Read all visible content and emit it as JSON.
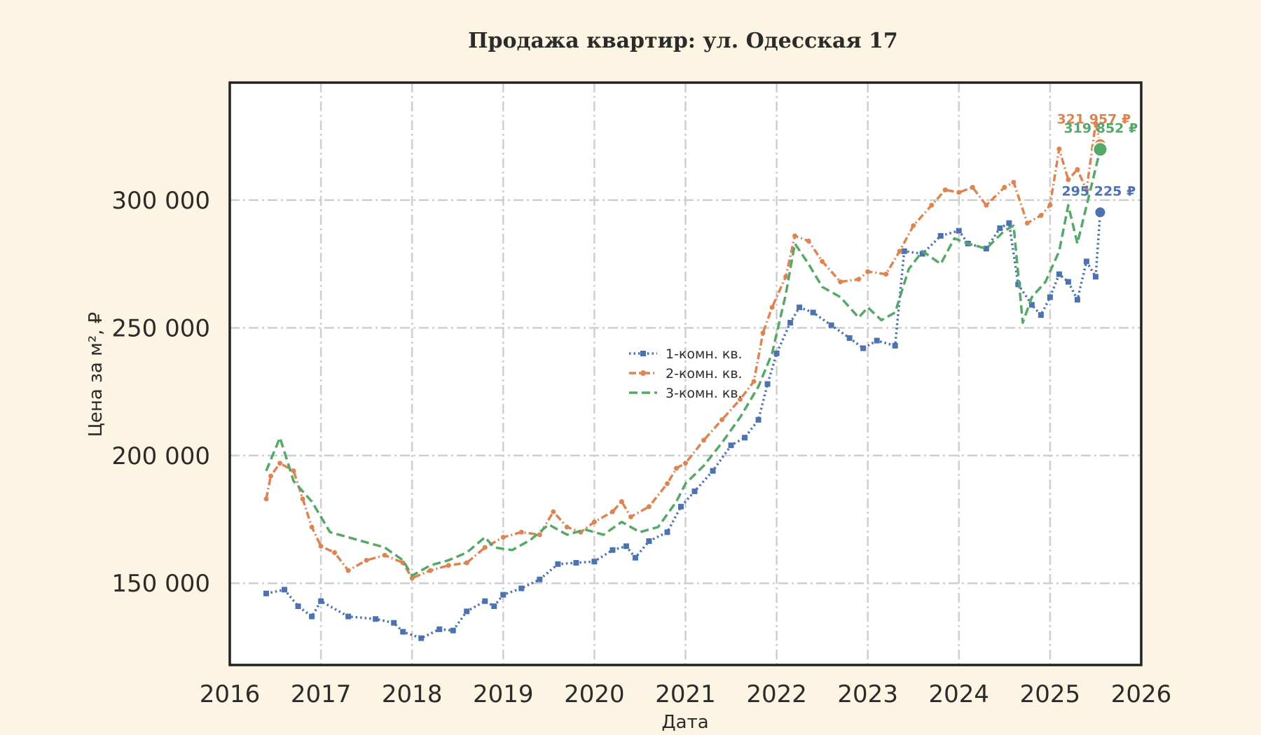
{
  "chart_data": {
    "type": "line",
    "title": "Продажа квартир: ул. Одесская 17",
    "xlabel": "Дата",
    "ylabel": "Цена за м², ₽",
    "xlim": [
      2016,
      2026
    ],
    "ylim": [
      118000,
      346000
    ],
    "x_ticks": [
      "2016",
      "2017",
      "2018",
      "2019",
      "2020",
      "2021",
      "2022",
      "2023",
      "2024",
      "2025",
      "2026"
    ],
    "y_ticks": [
      {
        "value": 150000,
        "label": "150 000"
      },
      {
        "value": 200000,
        "label": "200 000"
      },
      {
        "value": 250000,
        "label": "250 000"
      },
      {
        "value": 300000,
        "label": "300 000"
      }
    ],
    "grid": true,
    "legend_position": "center",
    "series": [
      {
        "name": "1-комн. кв.",
        "color": "#4c72b0",
        "style": "dotted-square",
        "end_label": "295 225 ₽",
        "end_value": 295225,
        "points": [
          [
            2016.4,
            146000
          ],
          [
            2016.6,
            147500
          ],
          [
            2016.75,
            141000
          ],
          [
            2016.9,
            137000
          ],
          [
            2017.0,
            143000
          ],
          [
            2017.3,
            137000
          ],
          [
            2017.6,
            136000
          ],
          [
            2017.8,
            134500
          ],
          [
            2017.9,
            131000
          ],
          [
            2018.1,
            128500
          ],
          [
            2018.3,
            132000
          ],
          [
            2018.45,
            131500
          ],
          [
            2018.6,
            139000
          ],
          [
            2018.8,
            143000
          ],
          [
            2018.9,
            141000
          ],
          [
            2019.0,
            145500
          ],
          [
            2019.2,
            148000
          ],
          [
            2019.4,
            151500
          ],
          [
            2019.6,
            157500
          ],
          [
            2019.8,
            158000
          ],
          [
            2020.0,
            158500
          ],
          [
            2020.2,
            163000
          ],
          [
            2020.35,
            164500
          ],
          [
            2020.45,
            160000
          ],
          [
            2020.6,
            166500
          ],
          [
            2020.8,
            170000
          ],
          [
            2020.95,
            180000
          ],
          [
            2021.1,
            186000
          ],
          [
            2021.3,
            194000
          ],
          [
            2021.5,
            204000
          ],
          [
            2021.65,
            207000
          ],
          [
            2021.8,
            214000
          ],
          [
            2021.9,
            228000
          ],
          [
            2022.0,
            240000
          ],
          [
            2022.15,
            252000
          ],
          [
            2022.25,
            258000
          ],
          [
            2022.4,
            256000
          ],
          [
            2022.6,
            251000
          ],
          [
            2022.8,
            246000
          ],
          [
            2022.95,
            242000
          ],
          [
            2023.1,
            245000
          ],
          [
            2023.3,
            243000
          ],
          [
            2023.4,
            280000
          ],
          [
            2023.6,
            279000
          ],
          [
            2023.8,
            286000
          ],
          [
            2024.0,
            288000
          ],
          [
            2024.1,
            283000
          ],
          [
            2024.3,
            281000
          ],
          [
            2024.45,
            289000
          ],
          [
            2024.55,
            291000
          ],
          [
            2024.65,
            267000
          ],
          [
            2024.8,
            259000
          ],
          [
            2024.9,
            255000
          ],
          [
            2025.0,
            262000
          ],
          [
            2025.1,
            271000
          ],
          [
            2025.2,
            268000
          ],
          [
            2025.3,
            261000
          ],
          [
            2025.4,
            276000
          ],
          [
            2025.5,
            270000
          ],
          [
            2025.55,
            295225
          ]
        ]
      },
      {
        "name": "2-комн. кв.",
        "color": "#dd8452",
        "style": "dashdot-dot",
        "end_label": "321 957 ₽",
        "end_value": 321957,
        "points": [
          [
            2016.4,
            183000
          ],
          [
            2016.45,
            192000
          ],
          [
            2016.55,
            197000
          ],
          [
            2016.7,
            194000
          ],
          [
            2016.8,
            183000
          ],
          [
            2016.9,
            172000
          ],
          [
            2017.0,
            164500
          ],
          [
            2017.15,
            162000
          ],
          [
            2017.3,
            155000
          ],
          [
            2017.5,
            159000
          ],
          [
            2017.7,
            161000
          ],
          [
            2017.9,
            158000
          ],
          [
            2018.0,
            152000
          ],
          [
            2018.2,
            155000
          ],
          [
            2018.4,
            157000
          ],
          [
            2018.6,
            158000
          ],
          [
            2018.8,
            164000
          ],
          [
            2019.0,
            168000
          ],
          [
            2019.2,
            170000
          ],
          [
            2019.4,
            169000
          ],
          [
            2019.55,
            178000
          ],
          [
            2019.7,
            172000
          ],
          [
            2019.85,
            170000
          ],
          [
            2020.0,
            174000
          ],
          [
            2020.2,
            178000
          ],
          [
            2020.3,
            182000
          ],
          [
            2020.4,
            176000
          ],
          [
            2020.6,
            180000
          ],
          [
            2020.8,
            189000
          ],
          [
            2020.9,
            195000
          ],
          [
            2021.0,
            197000
          ],
          [
            2021.2,
            206000
          ],
          [
            2021.4,
            214000
          ],
          [
            2021.6,
            222000
          ],
          [
            2021.75,
            229000
          ],
          [
            2021.85,
            248000
          ],
          [
            2021.95,
            258000
          ],
          [
            2022.1,
            270000
          ],
          [
            2022.2,
            286000
          ],
          [
            2022.35,
            284000
          ],
          [
            2022.5,
            276000
          ],
          [
            2022.7,
            268000
          ],
          [
            2022.9,
            269000
          ],
          [
            2023.0,
            272000
          ],
          [
            2023.2,
            271000
          ],
          [
            2023.35,
            280000
          ],
          [
            2023.5,
            290000
          ],
          [
            2023.7,
            298000
          ],
          [
            2023.85,
            304000
          ],
          [
            2024.0,
            303000
          ],
          [
            2024.15,
            305000
          ],
          [
            2024.3,
            298000
          ],
          [
            2024.5,
            305000
          ],
          [
            2024.6,
            307000
          ],
          [
            2024.75,
            291000
          ],
          [
            2024.9,
            294000
          ],
          [
            2025.0,
            298000
          ],
          [
            2025.1,
            320000
          ],
          [
            2025.2,
            308000
          ],
          [
            2025.3,
            312000
          ],
          [
            2025.4,
            304000
          ],
          [
            2025.5,
            330000
          ],
          [
            2025.55,
            321957
          ]
        ]
      },
      {
        "name": "3-комн. кв.",
        "color": "#55a868",
        "style": "dashed",
        "end_label": "319 852 ₽",
        "end_value": 319852,
        "points": [
          [
            2016.4,
            194000
          ],
          [
            2016.55,
            207000
          ],
          [
            2016.7,
            190000
          ],
          [
            2016.9,
            182000
          ],
          [
            2017.0,
            176000
          ],
          [
            2017.1,
            170000
          ],
          [
            2017.3,
            168000
          ],
          [
            2017.5,
            166000
          ],
          [
            2017.7,
            164000
          ],
          [
            2017.9,
            159000
          ],
          [
            2018.0,
            153000
          ],
          [
            2018.2,
            157000
          ],
          [
            2018.4,
            159000
          ],
          [
            2018.6,
            162000
          ],
          [
            2018.8,
            168000
          ],
          [
            2018.9,
            164000
          ],
          [
            2019.1,
            163000
          ],
          [
            2019.3,
            167000
          ],
          [
            2019.5,
            173000
          ],
          [
            2019.7,
            169000
          ],
          [
            2019.9,
            171000
          ],
          [
            2020.1,
            169000
          ],
          [
            2020.3,
            174000
          ],
          [
            2020.5,
            170000
          ],
          [
            2020.7,
            172000
          ],
          [
            2020.9,
            182000
          ],
          [
            2021.0,
            189000
          ],
          [
            2021.2,
            196000
          ],
          [
            2021.4,
            205000
          ],
          [
            2021.6,
            215000
          ],
          [
            2021.8,
            227000
          ],
          [
            2021.95,
            240000
          ],
          [
            2022.1,
            263000
          ],
          [
            2022.2,
            283000
          ],
          [
            2022.35,
            275000
          ],
          [
            2022.5,
            266000
          ],
          [
            2022.7,
            262000
          ],
          [
            2022.9,
            254000
          ],
          [
            2023.0,
            258000
          ],
          [
            2023.15,
            253000
          ],
          [
            2023.3,
            256000
          ],
          [
            2023.45,
            273000
          ],
          [
            2023.6,
            280000
          ],
          [
            2023.8,
            275000
          ],
          [
            2023.95,
            285000
          ],
          [
            2024.1,
            283000
          ],
          [
            2024.3,
            281000
          ],
          [
            2024.5,
            288000
          ],
          [
            2024.6,
            290000
          ],
          [
            2024.7,
            252000
          ],
          [
            2024.8,
            262000
          ],
          [
            2024.95,
            268000
          ],
          [
            2025.1,
            280000
          ],
          [
            2025.2,
            298000
          ],
          [
            2025.3,
            283000
          ],
          [
            2025.45,
            305000
          ],
          [
            2025.55,
            319852
          ]
        ]
      }
    ]
  }
}
